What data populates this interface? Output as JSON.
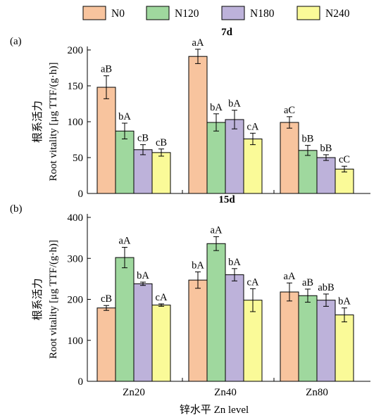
{
  "legend": {
    "items": [
      {
        "name": "N0",
        "color": "#f8c49e"
      },
      {
        "name": "N120",
        "color": "#9fd89e"
      },
      {
        "name": "N180",
        "color": "#bdb2da"
      },
      {
        "name": "N240",
        "color": "#fafa98"
      }
    ]
  },
  "xlabel": "锌水平 Zn level",
  "chart_data": [
    {
      "type": "bar",
      "panel": "(a)",
      "title": "7d",
      "ylabel_cn": "根系活力",
      "ylabel_en": "Root vitality [μg TTF/(g·h)]",
      "categories": [
        "Zn20",
        "Zn40",
        "Zn80"
      ],
      "ylim": [
        0,
        200
      ],
      "yticks": [
        0,
        50,
        100,
        150,
        200
      ],
      "series": [
        {
          "name": "N0",
          "values": [
            148,
            191,
            99
          ],
          "errors": [
            16,
            10,
            8
          ],
          "labels": [
            "aB",
            "aA",
            "aC"
          ]
        },
        {
          "name": "N120",
          "values": [
            87,
            99,
            60
          ],
          "errors": [
            11,
            12,
            7
          ],
          "labels": [
            "bA",
            "bA",
            "bB"
          ]
        },
        {
          "name": "N180",
          "values": [
            61,
            103,
            50
          ],
          "errors": [
            7,
            13,
            4
          ],
          "labels": [
            "cB",
            "bA",
            "bB"
          ]
        },
        {
          "name": "N240",
          "values": [
            57,
            76,
            34
          ],
          "errors": [
            5,
            8,
            4
          ],
          "labels": [
            "cB",
            "cA",
            "cC"
          ]
        }
      ]
    },
    {
      "type": "bar",
      "panel": "(b)",
      "title": "15d",
      "ylabel_cn": "根系活力",
      "ylabel_en": "Root vitality [μg TTF/(g·h)]",
      "categories": [
        "Zn20",
        "Zn40",
        "Zn80"
      ],
      "ylim": [
        0,
        400
      ],
      "yticks": [
        0,
        100,
        200,
        300,
        400
      ],
      "series": [
        {
          "name": "N0",
          "values": [
            179,
            247,
            218
          ],
          "errors": [
            6,
            20,
            22
          ],
          "labels": [
            "cB",
            "bA",
            "aA"
          ]
        },
        {
          "name": "N120",
          "values": [
            302,
            336,
            209
          ],
          "errors": [
            25,
            17,
            16
          ],
          "labels": [
            "aA",
            "aA",
            "aB"
          ]
        },
        {
          "name": "N180",
          "values": [
            238,
            260,
            198
          ],
          "errors": [
            4,
            15,
            15
          ],
          "labels": [
            "bA",
            "bA",
            "abB"
          ]
        },
        {
          "name": "N240",
          "values": [
            186,
            198,
            162
          ],
          "errors": [
            3,
            28,
            17
          ],
          "labels": [
            "cA",
            "cA",
            "bA"
          ]
        }
      ]
    }
  ]
}
